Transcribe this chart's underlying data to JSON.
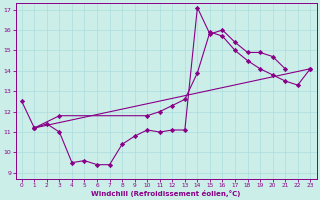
{
  "xlabel": "Windchill (Refroidissement éolien,°C)",
  "xlim": [
    -0.5,
    23.5
  ],
  "ylim": [
    8.7,
    17.3
  ],
  "yticks": [
    9,
    10,
    11,
    12,
    13,
    14,
    15,
    16,
    17
  ],
  "xticks": [
    0,
    1,
    2,
    3,
    4,
    5,
    6,
    7,
    8,
    9,
    10,
    11,
    12,
    13,
    14,
    15,
    16,
    17,
    18,
    19,
    20,
    21,
    22,
    23
  ],
  "bg_color": "#cceee8",
  "line_color": "#880088",
  "grid_color": "#aadddd",
  "line1_x": [
    0,
    1,
    2,
    3,
    4,
    5,
    6,
    7,
    8,
    9,
    10,
    11,
    12,
    13,
    14,
    15,
    16,
    17,
    18,
    19,
    20,
    21
  ],
  "line1_y": [
    12.5,
    11.2,
    11.4,
    11.0,
    9.5,
    9.6,
    9.4,
    9.4,
    10.4,
    10.8,
    11.1,
    11.0,
    11.1,
    11.1,
    17.1,
    15.8,
    16.0,
    15.4,
    14.9,
    14.9,
    14.7,
    14.1
  ],
  "line2_x": [
    1,
    3,
    10,
    11,
    12,
    13,
    14,
    15,
    16,
    17,
    18,
    19,
    20,
    21,
    22,
    23
  ],
  "line2_y": [
    11.2,
    11.8,
    11.8,
    12.0,
    12.3,
    12.6,
    13.9,
    15.9,
    15.7,
    15.0,
    14.5,
    14.1,
    13.8,
    13.5,
    13.3,
    14.1
  ],
  "line3_x": [
    1,
    23
  ],
  "line3_y": [
    11.2,
    14.1
  ]
}
